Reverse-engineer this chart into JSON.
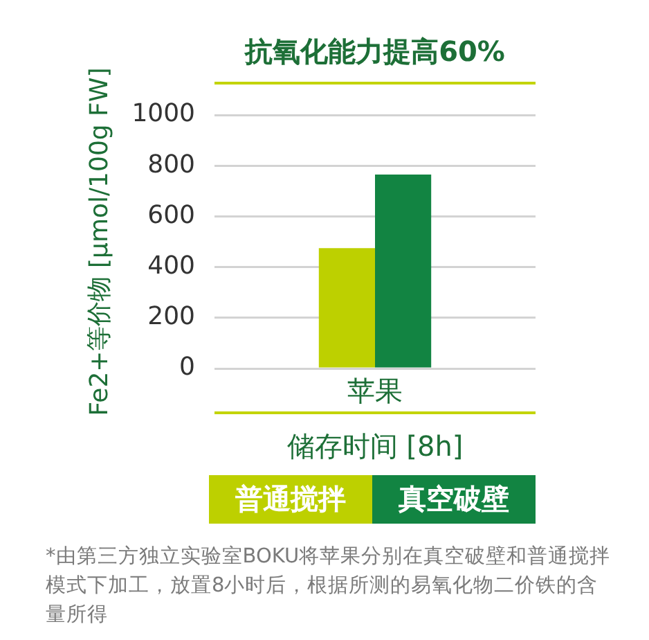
{
  "chart_data": {
    "type": "bar",
    "title": "抗氧化能力提高60%",
    "ylabel": "Fe2+等价物 [μmol/100g FW]",
    "xlabel": "储存时间 [8h]",
    "categories": [
      "苹果"
    ],
    "series": [
      {
        "name": "普通搅拌",
        "color": "#bdd000",
        "values": [
          475
        ]
      },
      {
        "name": "真空破壁",
        "color": "#128442",
        "values": [
          765
        ]
      }
    ],
    "ylim": [
      0,
      1000
    ],
    "yticks": [
      0,
      200,
      400,
      600,
      800,
      1000
    ],
    "grid": "y",
    "legend": "bottom",
    "annotations": [
      "*由第三方独立实验室BOKU将苹果分别在真空破壁和普通搅拌模式下加工，放置8小时后，根据所测的易氧化物二价铁的含量所得"
    ]
  }
}
